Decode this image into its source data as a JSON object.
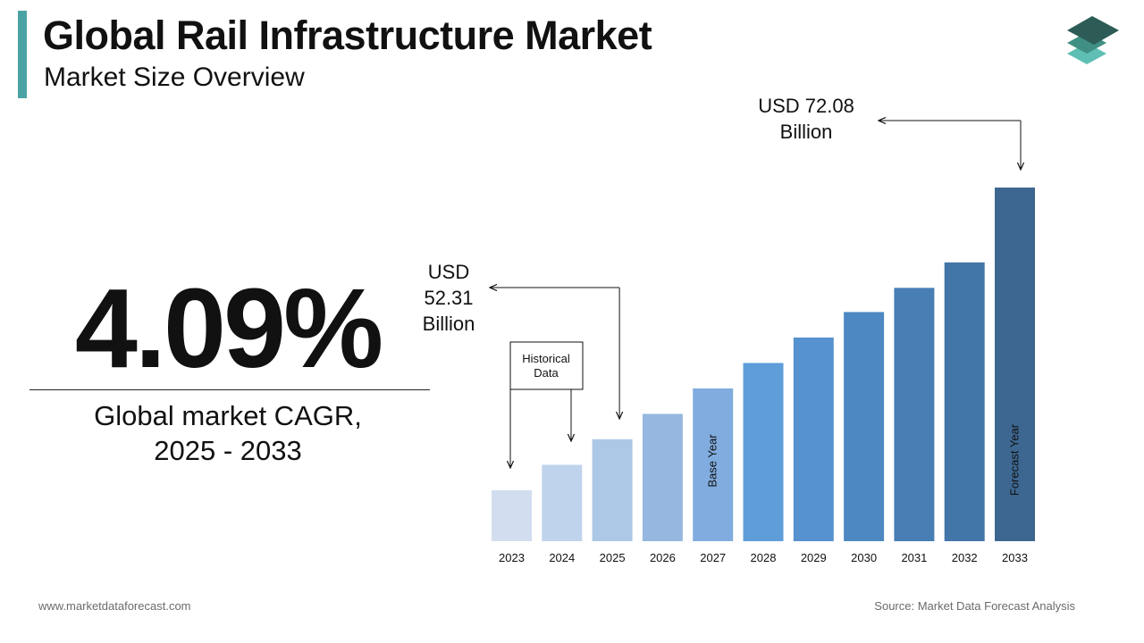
{
  "header": {
    "title": "Global Rail Infrastructure Market",
    "subtitle": "Market Size Overview"
  },
  "kpi": {
    "value": "4.09%",
    "label_line1": "Global market CAGR,",
    "label_line2": "2025 - 2033"
  },
  "callouts": {
    "start_lines": [
      "USD",
      "52.31",
      "Billion"
    ],
    "end_lines": [
      "USD 72.08",
      "Billion"
    ]
  },
  "historical_box": {
    "lines": [
      "Historical",
      "Data"
    ]
  },
  "footer": {
    "website": "www.marketdataforecast.com",
    "source": "Source: Market Data Forecast Analysis"
  },
  "chart_data": {
    "type": "bar",
    "categories": [
      "2023",
      "2024",
      "2025",
      "2026",
      "2027",
      "2028",
      "2029",
      "2030",
      "2031",
      "2032",
      "2033"
    ],
    "values": [
      48.3,
      50.3,
      52.31,
      54.3,
      56.3,
      58.3,
      60.3,
      62.3,
      64.2,
      66.2,
      72.08
    ],
    "ylim": [
      44.3,
      72.08
    ],
    "bar_labels": {
      "2027": "Base Year",
      "2033": "Forecast Year"
    },
    "colors": [
      "#d2deef",
      "#c0d3ec",
      "#adc7e7",
      "#96b8e0",
      "#80acdf",
      "#5f9dd9",
      "#5692cf",
      "#4e88c2",
      "#477eb4",
      "#4275a8",
      "#3d6790"
    ],
    "grid": false,
    "legend": "none"
  }
}
